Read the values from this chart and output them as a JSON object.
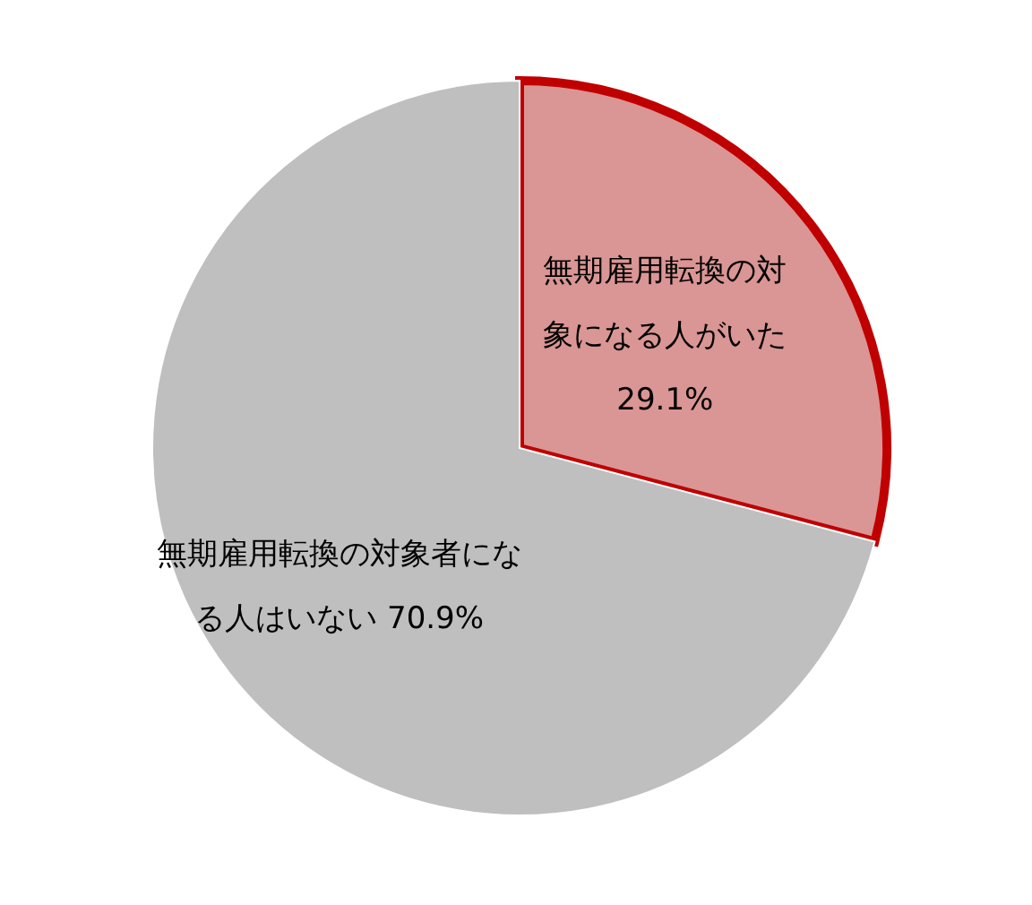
{
  "chart_data": {
    "type": "pie",
    "categories": [
      "無期雇用転換の対象になる人がいた",
      "無期雇用転換の対象者になる人はいない"
    ],
    "values": [
      29.1,
      70.9
    ],
    "colors": [
      "#d99694",
      "#bfbfbf"
    ],
    "value_labels": [
      "29.1%",
      "70.9%"
    ]
  }
}
